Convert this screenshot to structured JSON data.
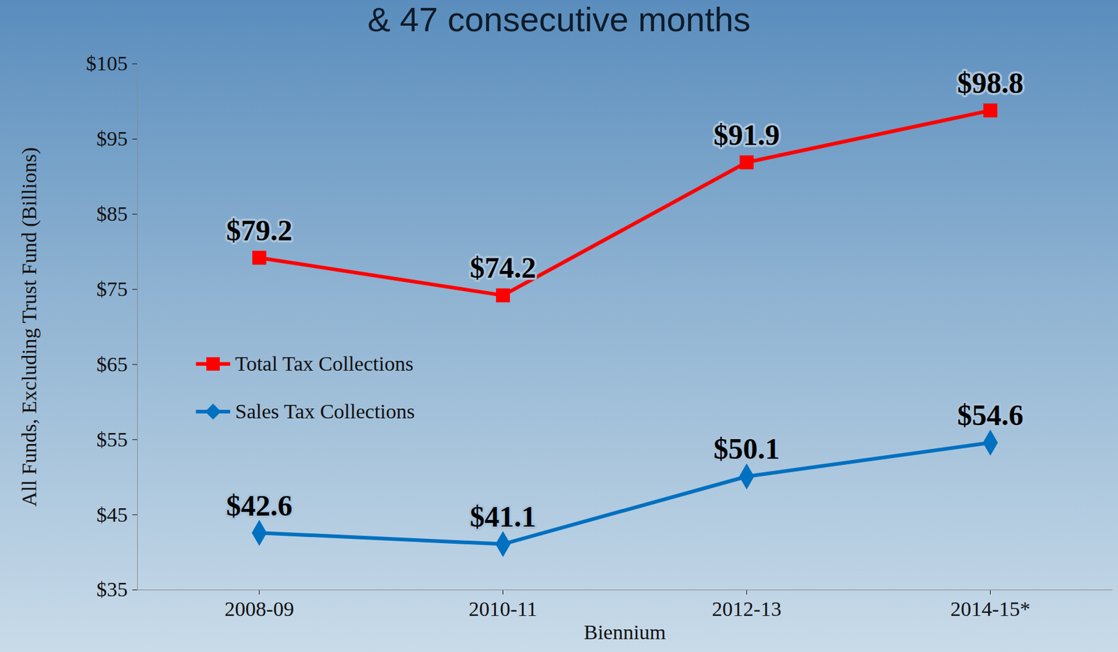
{
  "chart_data": {
    "type": "line",
    "title": "& 47 consecutive months",
    "x_label": "Biennium",
    "y_label": "All Funds, Excluding Trust Fund (Billions)",
    "categories": [
      "2008-09",
      "2010-11",
      "2012-13",
      "2014-15*"
    ],
    "series": [
      {
        "name": "Total Tax Collections",
        "color": "#ff0000",
        "marker": "square",
        "values": [
          79.2,
          74.2,
          91.9,
          98.8
        ],
        "value_labels": [
          "$79.2",
          "$74.2",
          "$91.9",
          "$98.8"
        ]
      },
      {
        "name": "Sales Tax Collections",
        "color": "#0070c0",
        "marker": "diamond",
        "values": [
          42.6,
          41.1,
          50.1,
          54.6
        ],
        "value_labels": [
          "$42.6",
          "$41.1",
          "$50.1",
          "$54.6"
        ]
      }
    ],
    "ylim": [
      35,
      105
    ],
    "yticks": [
      {
        "value": 35,
        "label": "$35"
      },
      {
        "value": 45,
        "label": "$45"
      },
      {
        "value": 55,
        "label": "$55"
      },
      {
        "value": 65,
        "label": "$65"
      },
      {
        "value": 75,
        "label": "$75"
      },
      {
        "value": 85,
        "label": "$85"
      },
      {
        "value": 95,
        "label": "$95"
      },
      {
        "value": 105,
        "label": "$105"
      }
    ],
    "grid": false,
    "legend": "left",
    "data_labels": true
  }
}
